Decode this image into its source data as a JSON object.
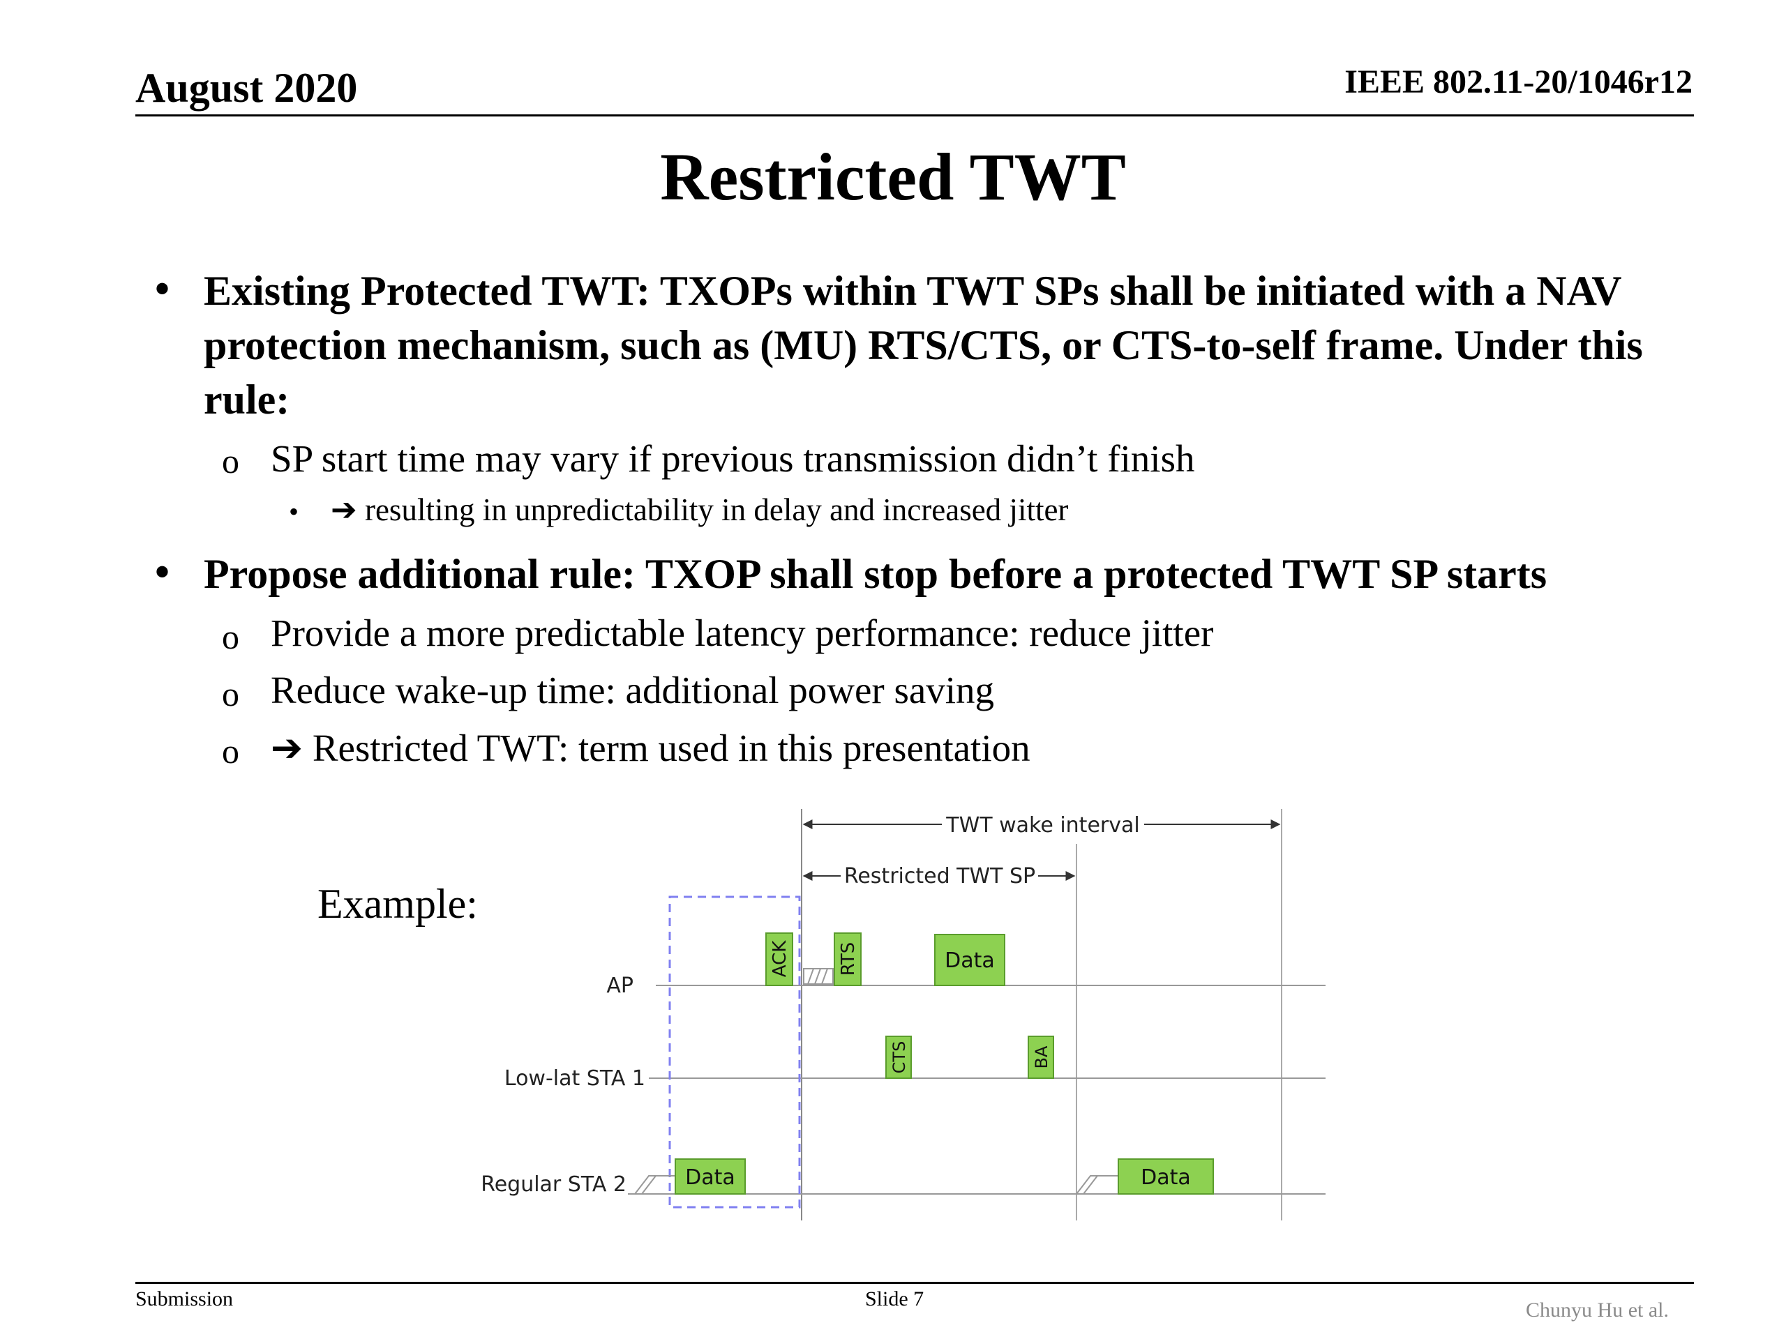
{
  "header": {
    "date": "August 2020",
    "doc_id": "IEEE 802.11-20/1046r12"
  },
  "title": "Restricted TWT",
  "bullets": [
    {
      "text": "Existing Protected TWT: TXOPs within TWT SPs shall be initiated with a NAV protection mechanism, such as (MU) RTS/CTS, or CTS-to-self frame. Under this rule:",
      "sub": [
        {
          "text": "SP start time may vary if previous transmission didn’t finish",
          "sub": [
            {
              "text": "resulting in unpredictability in delay and increased jitter"
            }
          ]
        }
      ]
    },
    {
      "text": "Propose additional rule: TXOP shall stop before a protected TWT SP starts",
      "sub": [
        {
          "text": "Provide a more predictable latency performance: reduce jitter"
        },
        {
          "text": "Reduce wake-up time: additional power saving"
        },
        {
          "text": "Restricted TWT: term used in this presentation"
        }
      ]
    }
  ],
  "markers": {
    "bullet": "•",
    "circle": "o",
    "arrow": "➔"
  },
  "example_label": "Example:",
  "diagram": {
    "twt_wake_interval": "TWT wake interval",
    "restricted_twt_sp": "Restricted TWT SP",
    "rows": [
      "AP",
      "Low-lat STA 1",
      "Regular STA 2"
    ],
    "frames": {
      "ack": "ACK",
      "rts": "RTS",
      "data_ap": "Data",
      "cts": "CTS",
      "ba": "BA",
      "data_sta2_a": "Data",
      "data_sta2_b": "Data"
    },
    "colors": {
      "frame_fill": "#8dd151",
      "frame_stroke": "#5a9c2c",
      "dashed_box": "#8080f0"
    }
  },
  "footer": {
    "submission": "Submission",
    "slide": "Slide 7",
    "author": "Chunyu Hu et al."
  }
}
